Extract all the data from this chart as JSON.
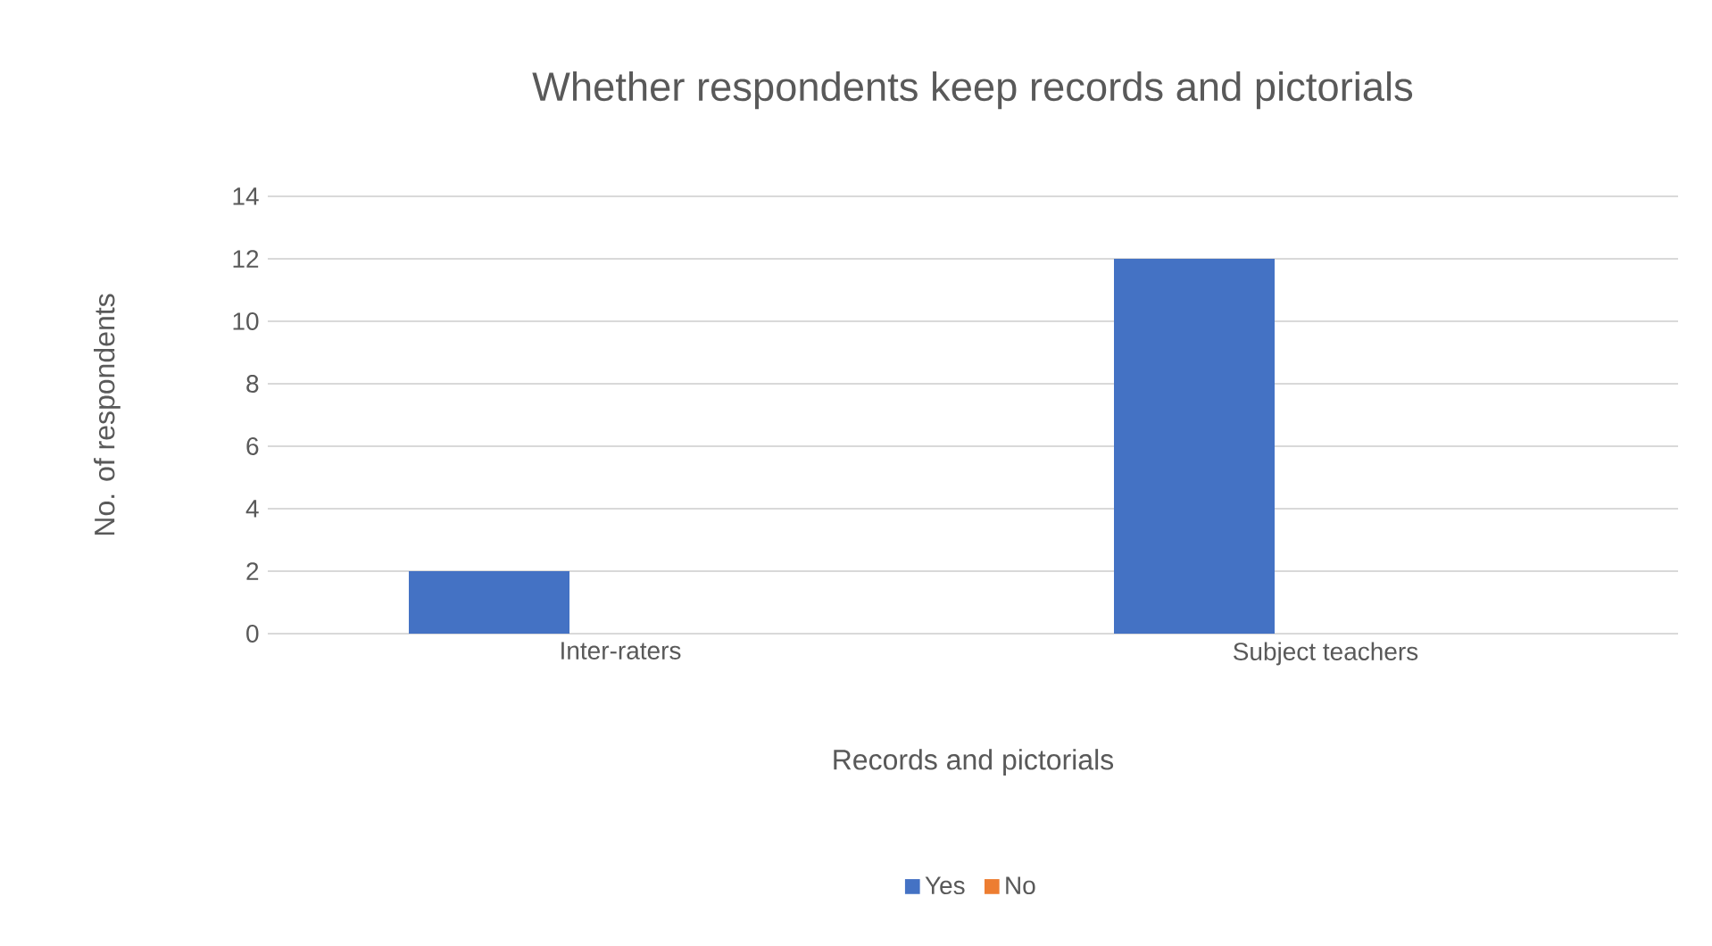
{
  "chart_data": {
    "type": "bar",
    "title": "Whether respondents keep records and pictorials",
    "xlabel": "Records and pictorials",
    "ylabel": "No. of respondents",
    "categories": [
      "Inter-raters",
      "Subject teachers"
    ],
    "series": [
      {
        "name": "Yes",
        "color": "#4472c4",
        "values": [
          2,
          12
        ]
      },
      {
        "name": "No",
        "color": "#ed7d31",
        "values": [
          0,
          0
        ]
      }
    ],
    "ylim": [
      0,
      14
    ],
    "yticks": [
      0,
      2,
      4,
      6,
      8,
      10,
      12,
      14
    ],
    "grid": "y",
    "legend": "bottom"
  }
}
